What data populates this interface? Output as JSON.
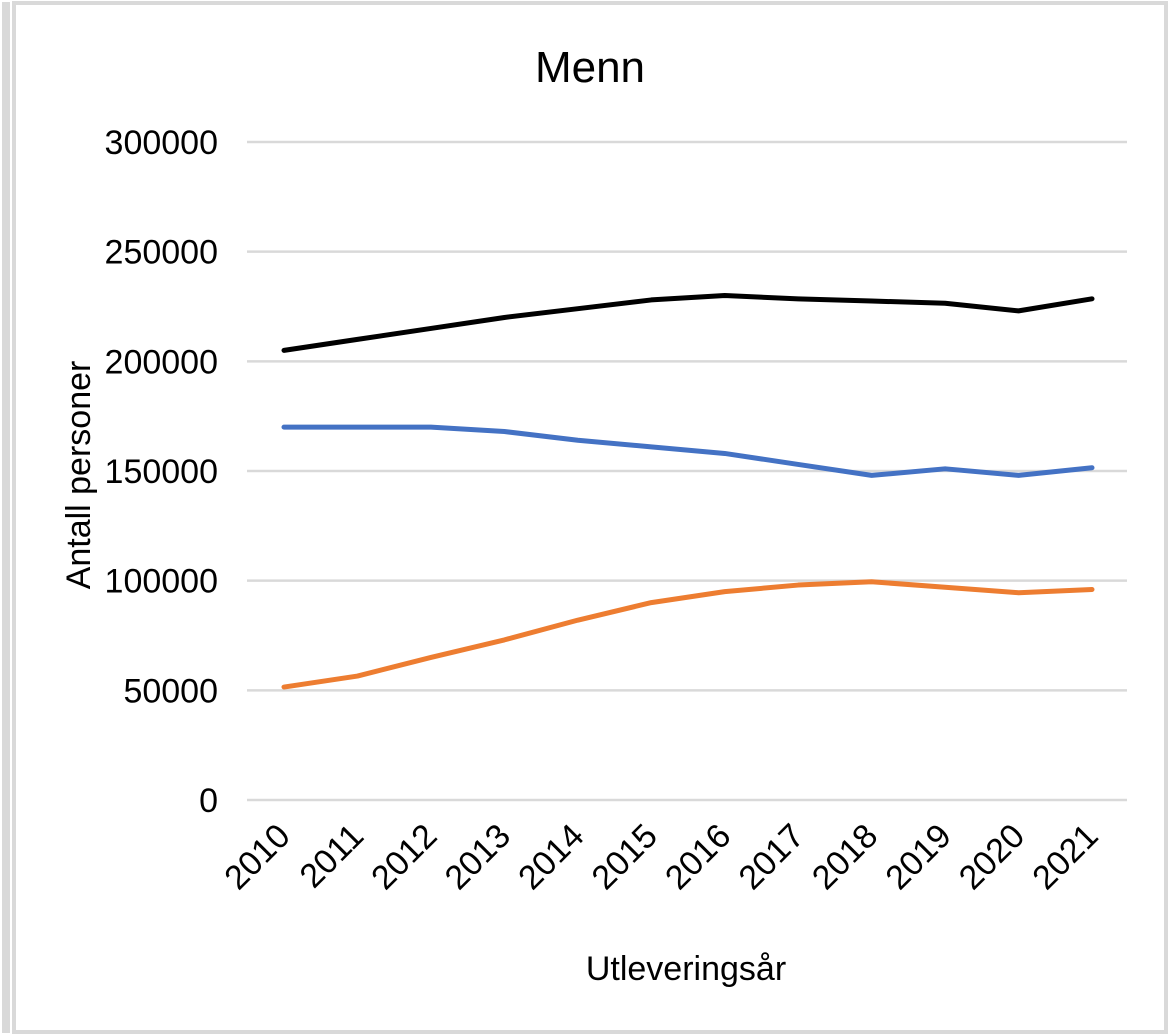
{
  "chart_data": {
    "type": "line",
    "title": "Menn",
    "x_label": "Utleveringsår",
    "y_label": "Antall personer",
    "categories": [
      "2010",
      "2011",
      "2012",
      "2013",
      "2014",
      "2015",
      "2016",
      "2017",
      "2018",
      "2019",
      "2020",
      "2021"
    ],
    "series": [
      {
        "color": "#000000",
        "values": [
          205000,
          210000,
          215000,
          220000,
          224000,
          228000,
          230000,
          228500,
          227500,
          226500,
          223000,
          228500
        ]
      },
      {
        "color": "#4472c4",
        "values": [
          170000,
          170000,
          170000,
          168000,
          164000,
          161000,
          158000,
          153000,
          148000,
          151000,
          148000,
          151500
        ]
      },
      {
        "color": "#ed7d31",
        "values": [
          51500,
          56500,
          65000,
          73000,
          82000,
          90000,
          95000,
          98000,
          99500,
          97000,
          94500,
          96000
        ]
      }
    ],
    "ylim": [
      0,
      300000
    ],
    "yticks": [
      0,
      50000,
      100000,
      150000,
      200000,
      250000,
      300000
    ],
    "grid": true
  }
}
